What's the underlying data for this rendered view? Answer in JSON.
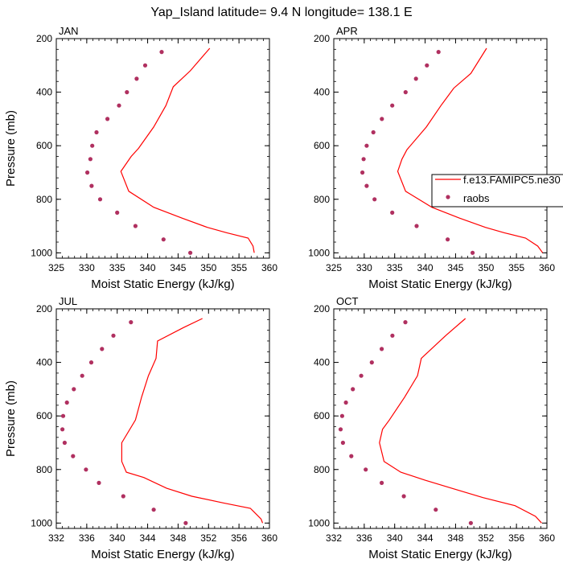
{
  "page": {
    "title": "Yap_Island  latitude= 9.4 N longitude= 138.1 E"
  },
  "legend": {
    "model_label": "f.e13.FAMIPC5.ne30",
    "obs_label": "raobs",
    "colors": {
      "model": "#ff0000",
      "obs": "#b03060"
    }
  },
  "chart_data": [
    {
      "type": "line",
      "panel": "JAN",
      "xlabel": "Moist Static Energy (kJ/kg)",
      "ylabel": "Pressure (mb)",
      "xlim": [
        325,
        360
      ],
      "ylim": [
        200,
        1020
      ],
      "y_inverted": true,
      "x_ticks": [
        325,
        330,
        335,
        340,
        345,
        350,
        355,
        360
      ],
      "y_ticks": [
        200,
        400,
        600,
        800,
        1000
      ],
      "series": [
        {
          "name": "f.e13.FAMIPC5.ne30",
          "style": "line",
          "x": [
            350.2,
            347.0,
            344.2,
            343.0,
            341.0,
            338.5,
            337.3,
            335.6,
            336.9,
            341.0,
            345.6,
            349.8,
            353.0,
            356.5,
            357.3,
            357.5
          ],
          "y": [
            236,
            320,
            380,
            450,
            530,
            610,
            640,
            696,
            770,
            830,
            870,
            905,
            925,
            945,
            975,
            1000
          ]
        },
        {
          "name": "raobs",
          "style": "markers",
          "x": [
            342.3,
            339.6,
            338.2,
            336.6,
            335.3,
            333.4,
            331.6,
            330.9,
            330.6,
            330.1,
            330.8,
            332.2,
            335.0,
            338.0,
            342.6,
            347.0
          ],
          "y": [
            250,
            300,
            350,
            400,
            450,
            500,
            550,
            600,
            650,
            700,
            750,
            800,
            850,
            900,
            950,
            1000
          ]
        }
      ]
    },
    {
      "type": "line",
      "panel": "APR",
      "xlabel": "Moist Static Energy (kJ/kg)",
      "ylabel": "",
      "xlim": [
        325,
        360
      ],
      "ylim": [
        200,
        1020
      ],
      "y_inverted": true,
      "x_ticks": [
        325,
        330,
        335,
        340,
        345,
        350,
        355,
        360
      ],
      "y_ticks": [
        200,
        400,
        600,
        800,
        1000
      ],
      "series": [
        {
          "name": "f.e13.FAMIPC5.ne30",
          "style": "line",
          "x": [
            350.1,
            347.5,
            344.7,
            342.6,
            340.2,
            337.0,
            336.2,
            335.5,
            336.8,
            341.1,
            345.6,
            349.9,
            353.0,
            356.5,
            358.5,
            359.3
          ],
          "y": [
            236,
            330,
            385,
            450,
            530,
            615,
            650,
            696,
            770,
            830,
            870,
            905,
            925,
            945,
            975,
            1000
          ]
        },
        {
          "name": "raobs",
          "style": "markers",
          "x": [
            342.2,
            340.3,
            338.5,
            336.8,
            334.6,
            332.9,
            331.5,
            330.4,
            329.9,
            329.7,
            330.4,
            331.7,
            334.6,
            338.6,
            343.7,
            347.8
          ],
          "y": [
            250,
            300,
            350,
            400,
            450,
            500,
            550,
            600,
            650,
            700,
            750,
            800,
            850,
            900,
            950,
            1000
          ]
        }
      ]
    },
    {
      "type": "line",
      "panel": "JUL",
      "xlabel": "Moist Static Energy (kJ/kg)",
      "ylabel": "Pressure (mb)",
      "xlim": [
        332,
        360
      ],
      "ylim": [
        200,
        1020
      ],
      "y_inverted": true,
      "x_ticks": [
        332,
        336,
        340,
        344,
        348,
        352,
        356,
        360
      ],
      "y_ticks": [
        200,
        400,
        600,
        800,
        1000
      ],
      "series": [
        {
          "name": "f.e13.FAMIPC5.ne30",
          "style": "line",
          "x": [
            351.2,
            348.7,
            345.3,
            345.1,
            344.1,
            343.2,
            342.4,
            340.6,
            340.6,
            341.2,
            343.5,
            346.5,
            349.8,
            354.0,
            357.5,
            358.9,
            359.1
          ],
          "y": [
            236,
            270,
            320,
            385,
            450,
            530,
            615,
            700,
            770,
            810,
            830,
            870,
            900,
            925,
            945,
            985,
            1000
          ]
        },
        {
          "name": "raobs",
          "style": "markers",
          "x": [
            341.8,
            339.5,
            338.0,
            336.6,
            335.4,
            334.3,
            333.4,
            332.9,
            332.8,
            333.1,
            334.2,
            335.9,
            337.6,
            340.8,
            344.8,
            349.0
          ],
          "y": [
            250,
            300,
            350,
            400,
            450,
            500,
            550,
            600,
            650,
            700,
            750,
            800,
            850,
            900,
            950,
            1000
          ]
        }
      ]
    },
    {
      "type": "line",
      "panel": "OCT",
      "xlabel": "Moist Static Energy (kJ/kg)",
      "ylabel": "",
      "xlim": [
        332,
        360
      ],
      "ylim": [
        200,
        1020
      ],
      "y_inverted": true,
      "x_ticks": [
        332,
        336,
        340,
        344,
        348,
        352,
        356,
        360
      ],
      "y_ticks": [
        200,
        400,
        600,
        800,
        1000
      ],
      "series": [
        {
          "name": "f.e13.FAMIPC5.ne30",
          "style": "line",
          "x": [
            349.3,
            346.7,
            343.5,
            343.0,
            341.3,
            339.3,
            338.4,
            338.0,
            338.6,
            340.8,
            344.0,
            347.5,
            351.6,
            355.8,
            358.5,
            359.3
          ],
          "y": [
            236,
            300,
            385,
            450,
            530,
            615,
            650,
            700,
            770,
            810,
            840,
            870,
            905,
            935,
            975,
            1000
          ]
        },
        {
          "name": "raobs",
          "style": "markers",
          "x": [
            341.4,
            339.7,
            338.3,
            337.0,
            335.6,
            334.5,
            333.6,
            333.1,
            332.9,
            333.2,
            334.3,
            336.2,
            338.3,
            341.2,
            345.4,
            350.0
          ],
          "y": [
            250,
            300,
            350,
            400,
            450,
            500,
            550,
            600,
            650,
            700,
            750,
            800,
            850,
            900,
            950,
            1000
          ]
        }
      ]
    }
  ]
}
